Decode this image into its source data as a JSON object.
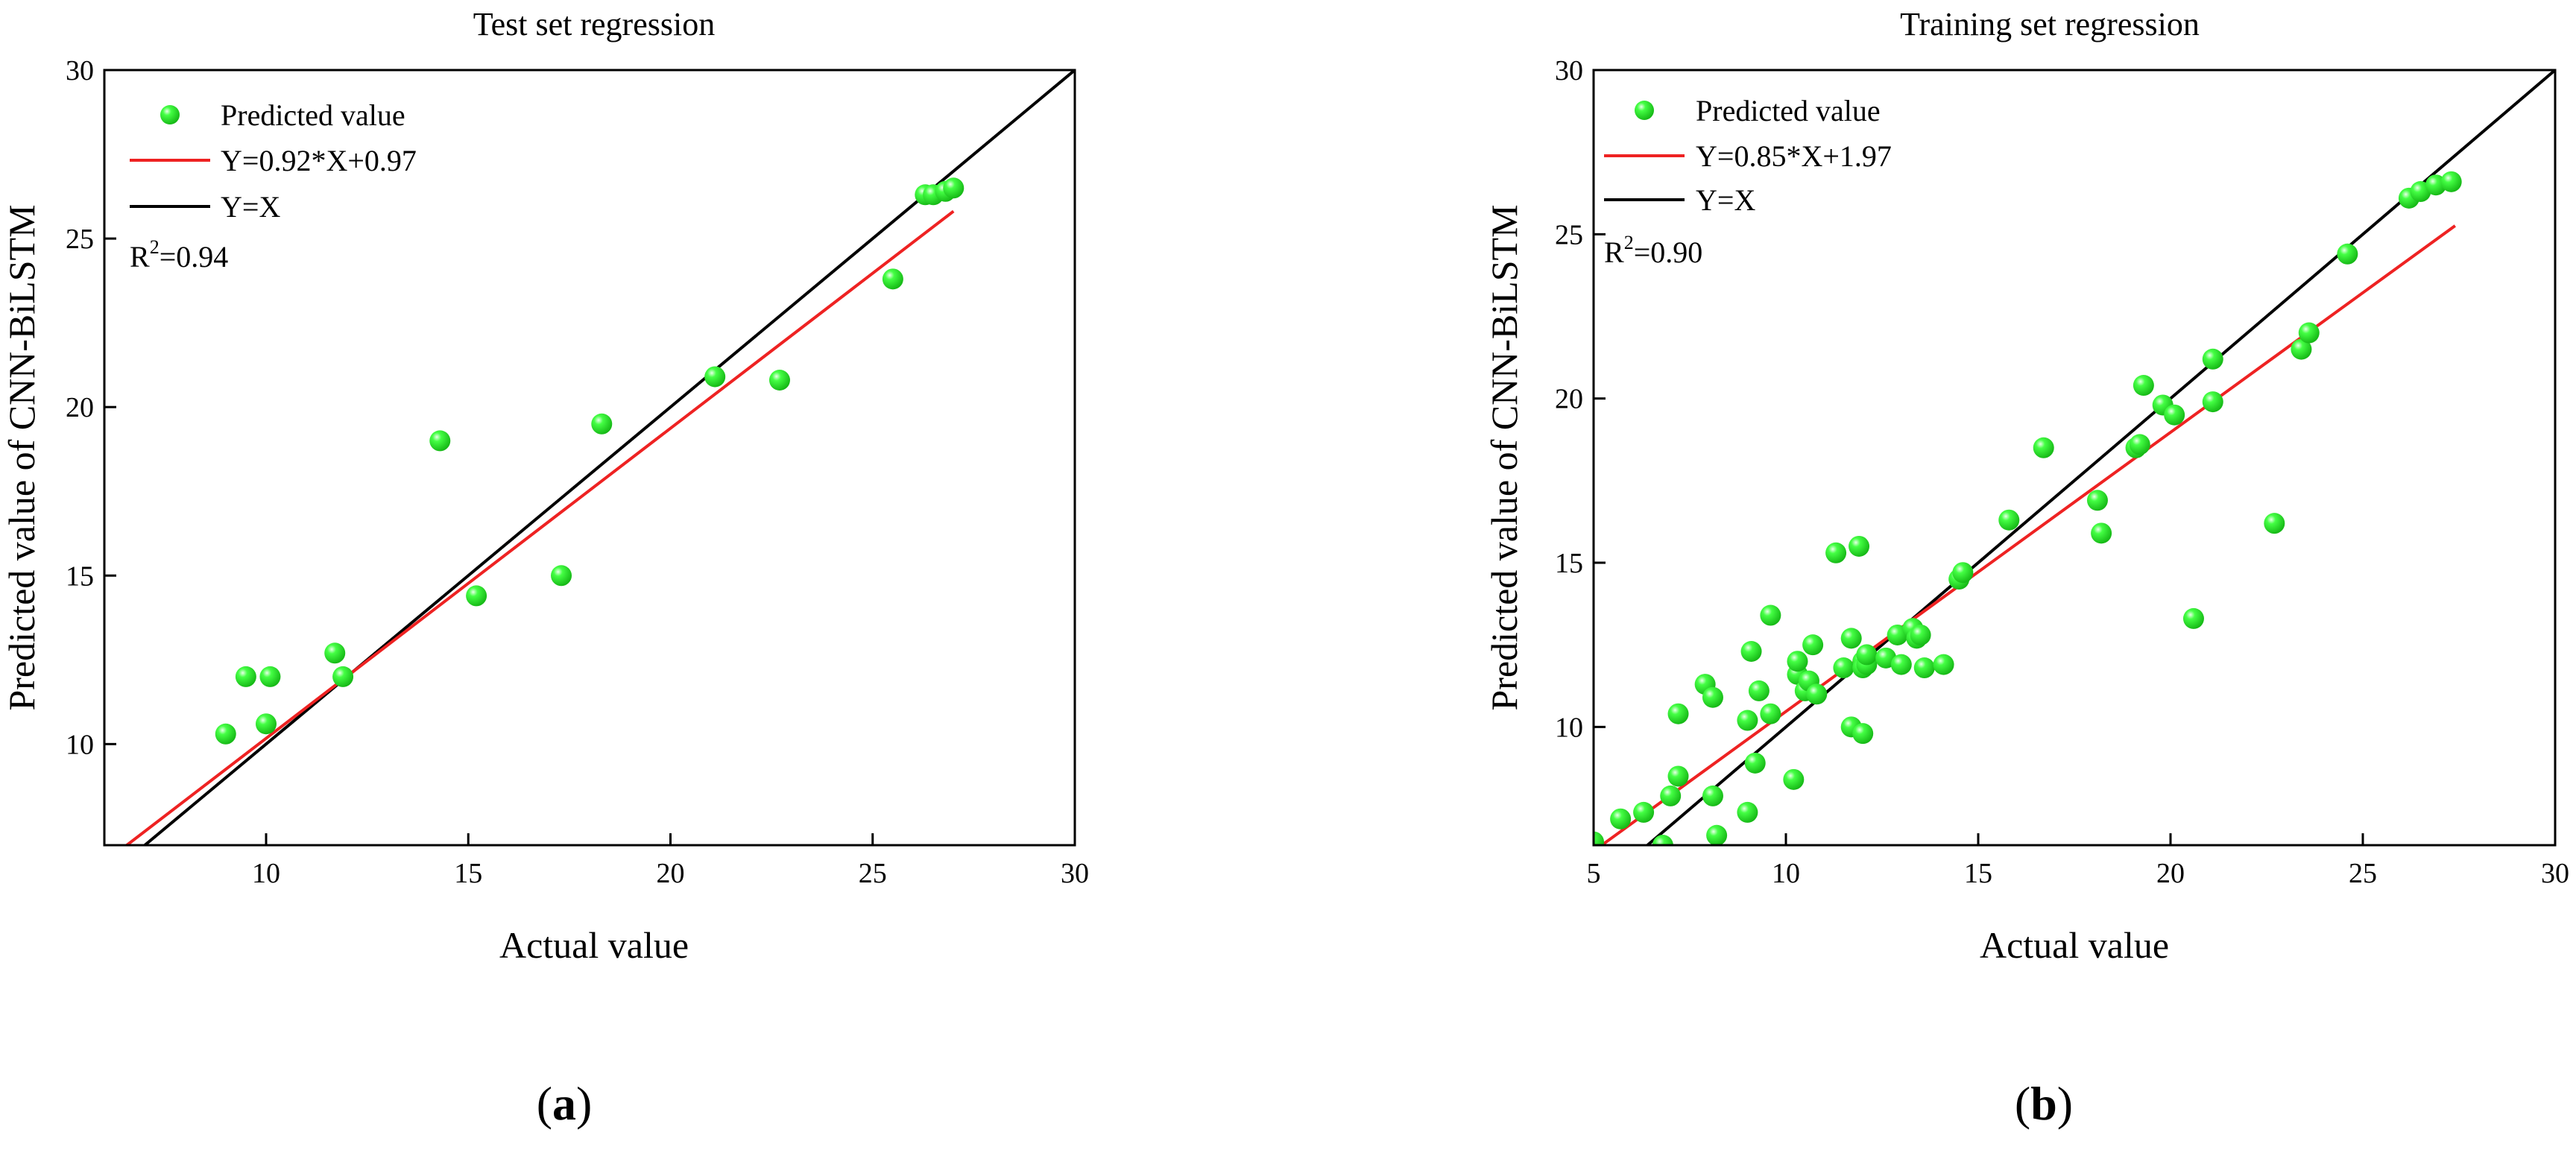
{
  "chart_data": [
    {
      "id": "a",
      "type": "scatter",
      "title": "Test set regression",
      "xlabel": "Actual value",
      "ylabel": "Predicted value of CNN-BiLSTM",
      "xlim": [
        6,
        30
      ],
      "ylim": [
        7,
        30
      ],
      "xticks": [
        10,
        15,
        20,
        25,
        30
      ],
      "yticks": [
        10,
        15,
        20,
        25,
        30
      ],
      "grid": false,
      "legend_position": "top-left",
      "subfigure": {
        "open": "(",
        "letter": "a",
        "close": ")"
      },
      "r2": {
        "prefix": "R",
        "sup": "2",
        "value": "=0.94"
      },
      "series": [
        {
          "name": "Predicted value",
          "kind": "points",
          "color": "#22ee22",
          "points": [
            [
              9.0,
              10.3
            ],
            [
              9.5,
              12.0
            ],
            [
              10.0,
              10.6
            ],
            [
              10.1,
              12.0
            ],
            [
              11.7,
              12.7
            ],
            [
              11.9,
              12.0
            ],
            [
              14.3,
              19.0
            ],
            [
              15.2,
              14.4
            ],
            [
              17.3,
              15.0
            ],
            [
              18.3,
              19.5
            ],
            [
              21.1,
              20.9
            ],
            [
              22.7,
              20.8
            ],
            [
              25.5,
              23.8
            ],
            [
              26.3,
              26.3
            ],
            [
              26.5,
              26.3
            ],
            [
              26.8,
              26.4
            ],
            [
              27.0,
              26.5
            ]
          ]
        },
        {
          "name": "Y=0.92*X+0.97",
          "kind": "line",
          "color": "#ee2222",
          "slope": 0.92,
          "intercept": 0.97,
          "x_range": [
            6,
            27
          ]
        },
        {
          "name": "Y=X",
          "kind": "line",
          "color": "#000000",
          "slope": 1,
          "intercept": 0,
          "x_range": [
            7,
            30
          ]
        }
      ]
    },
    {
      "id": "b",
      "type": "scatter",
      "title": "Training set regression",
      "xlabel": "Actual value",
      "ylabel": "Predicted value of CNN-BiLSTM",
      "xlim": [
        5,
        30
      ],
      "ylim": [
        6.4,
        30
      ],
      "xticks": [
        5,
        10,
        15,
        20,
        25,
        30
      ],
      "yticks": [
        10,
        15,
        20,
        25,
        30
      ],
      "grid": false,
      "legend_position": "top-left",
      "subfigure": {
        "open": "(",
        "letter": "b",
        "close": ")"
      },
      "r2": {
        "prefix": "R",
        "sup": "2",
        "value": "=0.90"
      },
      "series": [
        {
          "name": "Predicted value",
          "kind": "points",
          "color": "#22ee22",
          "points": [
            [
              5.0,
              6.5
            ],
            [
              5.7,
              7.2
            ],
            [
              6.3,
              7.4
            ],
            [
              6.8,
              6.4
            ],
            [
              7.0,
              7.9
            ],
            [
              7.2,
              8.5
            ],
            [
              7.2,
              10.4
            ],
            [
              7.9,
              11.3
            ],
            [
              8.1,
              7.9
            ],
            [
              8.1,
              10.9
            ],
            [
              8.2,
              6.7
            ],
            [
              9.0,
              7.4
            ],
            [
              9.0,
              10.2
            ],
            [
              9.1,
              12.3
            ],
            [
              9.2,
              8.9
            ],
            [
              9.3,
              11.1
            ],
            [
              9.6,
              13.4
            ],
            [
              9.6,
              10.4
            ],
            [
              10.2,
              8.4
            ],
            [
              10.3,
              11.6
            ],
            [
              10.3,
              12.0
            ],
            [
              10.5,
              11.1
            ],
            [
              10.6,
              11.4
            ],
            [
              10.7,
              12.5
            ],
            [
              10.8,
              11.0
            ],
            [
              11.3,
              15.3
            ],
            [
              11.5,
              11.8
            ],
            [
              11.7,
              12.7
            ],
            [
              11.7,
              10.0
            ],
            [
              11.9,
              15.5
            ],
            [
              12.0,
              12.0
            ],
            [
              12.0,
              11.8
            ],
            [
              12.0,
              9.8
            ],
            [
              12.1,
              11.9
            ],
            [
              12.1,
              12.2
            ],
            [
              12.6,
              12.1
            ],
            [
              12.9,
              12.8
            ],
            [
              13.0,
              11.9
            ],
            [
              13.3,
              13.0
            ],
            [
              13.4,
              12.7
            ],
            [
              13.5,
              12.8
            ],
            [
              13.6,
              11.8
            ],
            [
              14.1,
              11.9
            ],
            [
              14.5,
              14.5
            ],
            [
              14.6,
              14.7
            ],
            [
              15.8,
              16.3
            ],
            [
              16.7,
              18.5
            ],
            [
              18.1,
              16.9
            ],
            [
              18.2,
              15.9
            ],
            [
              19.1,
              18.5
            ],
            [
              19.2,
              18.6
            ],
            [
              19.3,
              20.4
            ],
            [
              19.8,
              19.8
            ],
            [
              20.1,
              19.5
            ],
            [
              20.6,
              13.3
            ],
            [
              21.1,
              19.9
            ],
            [
              21.1,
              21.2
            ],
            [
              22.7,
              16.2
            ],
            [
              23.4,
              21.5
            ],
            [
              23.6,
              22.0
            ],
            [
              24.6,
              24.4
            ],
            [
              26.2,
              26.1
            ],
            [
              26.5,
              26.3
            ],
            [
              26.9,
              26.5
            ],
            [
              27.3,
              26.6
            ]
          ]
        },
        {
          "name": "Y=0.85*X+1.97",
          "kind": "line",
          "color": "#ee2222",
          "slope": 0.85,
          "intercept": 1.97,
          "x_range": [
            5,
            27.4
          ]
        },
        {
          "name": "Y=X",
          "kind": "line",
          "color": "#000000",
          "slope": 1,
          "intercept": 0,
          "x_range": [
            6.4,
            30
          ]
        }
      ]
    }
  ]
}
